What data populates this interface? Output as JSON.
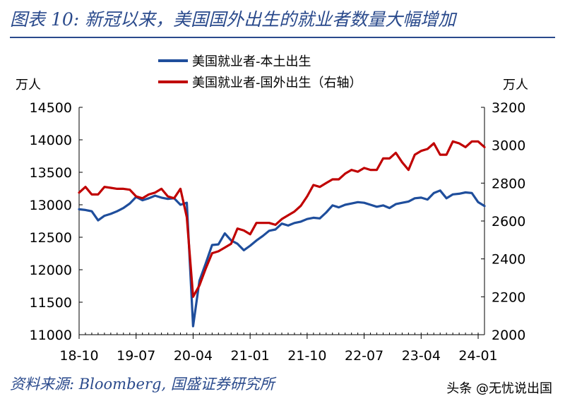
{
  "header": {
    "title": "图表 10:  新冠以来，美国国外出生的就业者数量大幅增加"
  },
  "footer": {
    "source": "资料来源: Bloomberg, 国盛证券研究所",
    "watermark": "头条 @无忧说出国"
  },
  "chart_data": {
    "type": "line",
    "title": "",
    "y_left_unit": "万人",
    "y_right_unit": "万人",
    "y_left_range": [
      11000,
      14500
    ],
    "y_left_ticks": [
      "14500",
      "14000",
      "13500",
      "13000",
      "12500",
      "12000",
      "11500",
      "11000"
    ],
    "y_right_range": [
      2000,
      3200
    ],
    "y_right_ticks": [
      "3200",
      "3000",
      "2800",
      "2600",
      "2400",
      "2200",
      "2000"
    ],
    "x_tick_labels": [
      "18-10",
      "19-07",
      "20-04",
      "21-01",
      "21-10",
      "22-07",
      "23-04",
      "24-01"
    ],
    "grid": false,
    "legend_position": "top-center",
    "x": [
      "2018-10",
      "2018-11",
      "2018-12",
      "2019-01",
      "2019-02",
      "2019-03",
      "2019-04",
      "2019-05",
      "2019-06",
      "2019-07",
      "2019-08",
      "2019-09",
      "2019-10",
      "2019-11",
      "2019-12",
      "2020-01",
      "2020-02",
      "2020-03",
      "2020-04",
      "2020-05",
      "2020-06",
      "2020-07",
      "2020-08",
      "2020-09",
      "2020-10",
      "2020-11",
      "2020-12",
      "2021-01",
      "2021-02",
      "2021-03",
      "2021-04",
      "2021-05",
      "2021-06",
      "2021-07",
      "2021-08",
      "2021-09",
      "2021-10",
      "2021-11",
      "2021-12",
      "2022-01",
      "2022-02",
      "2022-03",
      "2022-04",
      "2022-05",
      "2022-06",
      "2022-07",
      "2022-08",
      "2022-09",
      "2022-10",
      "2022-11",
      "2022-12",
      "2023-01",
      "2023-02",
      "2023-03",
      "2023-04",
      "2023-05",
      "2023-06",
      "2023-07",
      "2023-08",
      "2023-09",
      "2023-10",
      "2023-11",
      "2023-12",
      "2024-01",
      "2024-02"
    ],
    "series": [
      {
        "name": "美国就业者-本土出生",
        "axis": "left",
        "color": "#1f4e9c",
        "values": [
          12930,
          12920,
          12900,
          12760,
          12830,
          12860,
          12900,
          12950,
          13020,
          13120,
          13070,
          13100,
          13140,
          13110,
          13090,
          13100,
          13000,
          13030,
          11130,
          11830,
          12100,
          12380,
          12390,
          12560,
          12450,
          12400,
          12300,
          12370,
          12450,
          12520,
          12600,
          12620,
          12710,
          12680,
          12720,
          12740,
          12780,
          12800,
          12790,
          12880,
          12990,
          12960,
          13000,
          13020,
          13040,
          13030,
          13000,
          12970,
          12990,
          12950,
          13010,
          13030,
          13050,
          13100,
          13110,
          13080,
          13180,
          13220,
          13100,
          13160,
          13170,
          13190,
          13180,
          13040,
          12980
        ]
      },
      {
        "name": "美国就业者-国外出生（右轴）",
        "axis": "right",
        "color": "#c00000",
        "values": [
          2750,
          2780,
          2740,
          2740,
          2780,
          2775,
          2770,
          2770,
          2765,
          2730,
          2720,
          2740,
          2750,
          2770,
          2730,
          2720,
          2770,
          2620,
          2200,
          2260,
          2350,
          2430,
          2440,
          2460,
          2480,
          2560,
          2550,
          2530,
          2590,
          2590,
          2590,
          2580,
          2610,
          2630,
          2650,
          2680,
          2730,
          2790,
          2780,
          2800,
          2820,
          2820,
          2850,
          2870,
          2860,
          2880,
          2870,
          2870,
          2930,
          2930,
          2960,
          2910,
          2870,
          2950,
          2970,
          2980,
          3010,
          2950,
          2950,
          3020,
          3010,
          2990,
          3020,
          3020,
          2990
        ]
      }
    ]
  }
}
